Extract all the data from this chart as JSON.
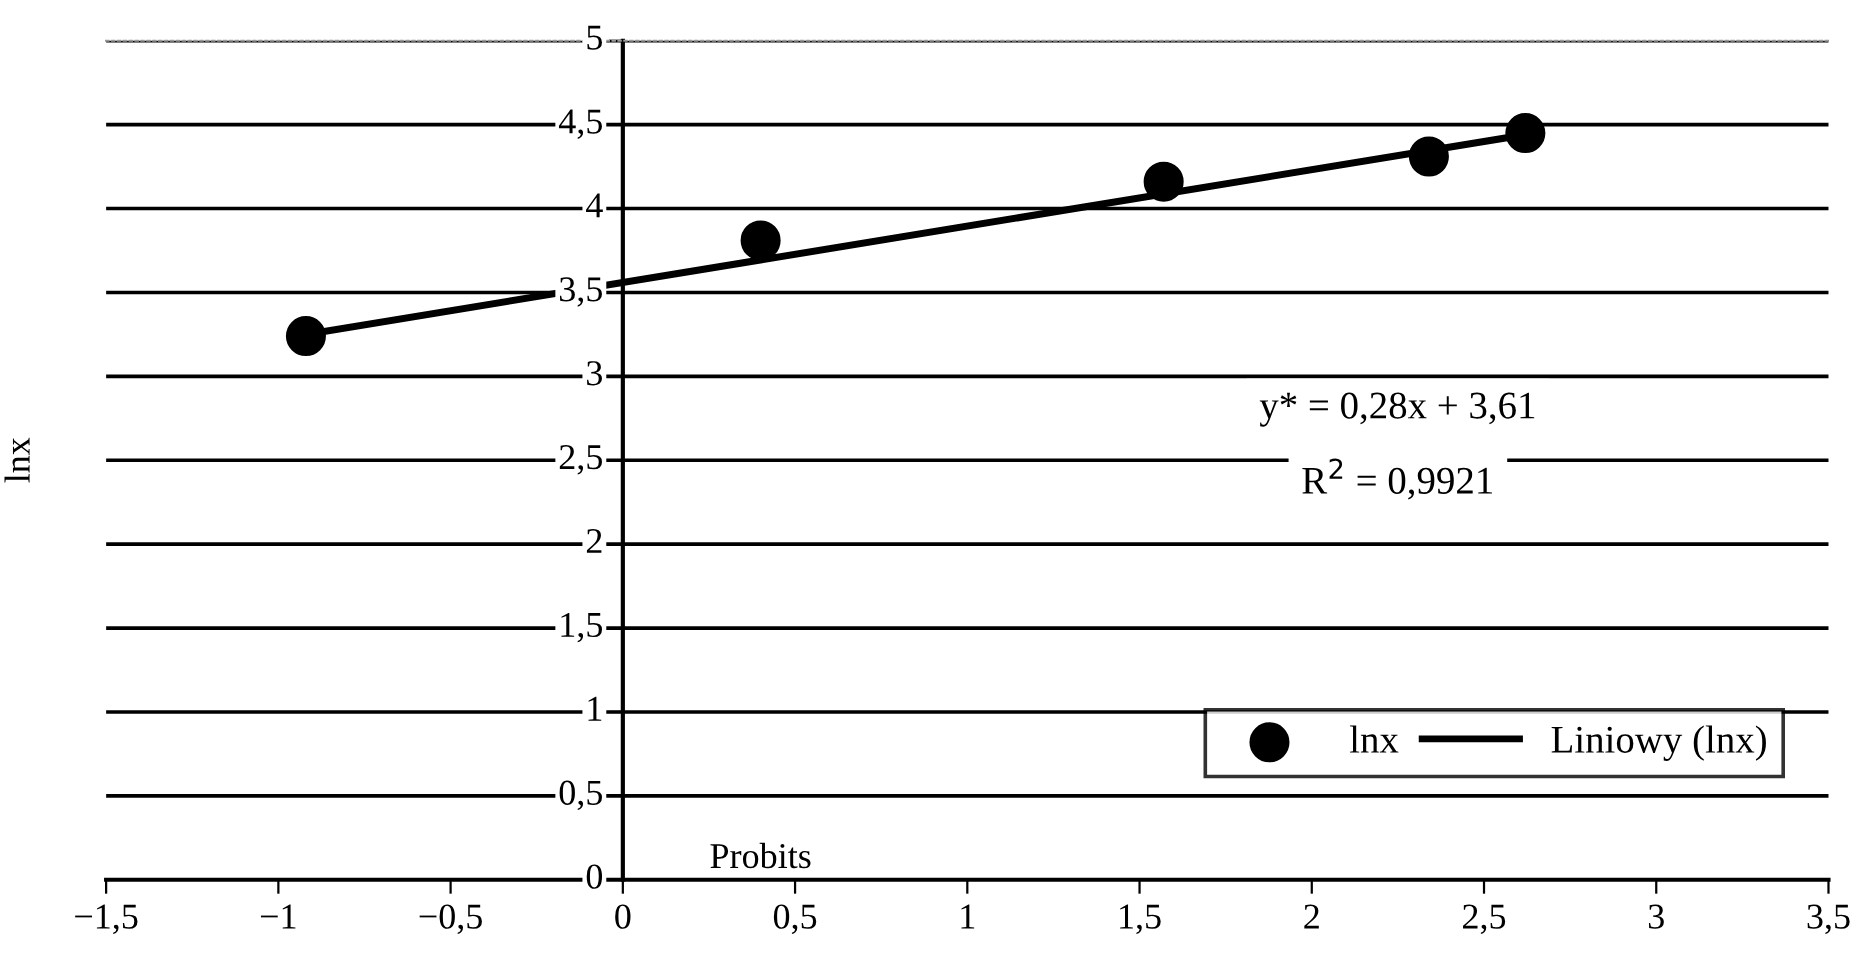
{
  "chart_data": {
    "type": "scatter",
    "xlabel": "Probits",
    "ylabel": "lnx",
    "series": [
      {
        "name": "lnx",
        "color": "#000000",
        "marker": "circle",
        "x": [
          -0.92,
          0.4,
          1.57,
          2.34,
          2.62
        ],
        "values": [
          3.24,
          3.81,
          4.16,
          4.31,
          4.45
        ]
      },
      {
        "name": "Liniowy (lnx)",
        "type": "line",
        "color": "#000000",
        "marker": "none",
        "line_style": "solid",
        "x": [
          -0.92,
          2.62
        ],
        "values": [
          3.25,
          4.44
        ]
      }
    ],
    "annotations": [
      "y* = 0,28x + 3,61",
      "R$^{2}$ = 0,9921"
    ],
    "xlim": [
      -1.5,
      3.5
    ],
    "ylim": [
      0,
      5
    ],
    "xticks": [
      {
        "value": -1.5,
        "label": "−1,5"
      },
      {
        "value": -1,
        "label": "−1"
      },
      {
        "value": -0.5,
        "label": "−0,5"
      },
      0,
      {
        "value": 0.5,
        "label": "0,5"
      },
      1,
      {
        "value": 1.5,
        "label": "1,5"
      },
      2,
      {
        "value": 2.5,
        "label": "2,5"
      },
      3,
      {
        "value": 3.5,
        "label": "3,5"
      }
    ],
    "yticks": [
      0,
      {
        "value": 0.5,
        "label": "0,5"
      },
      1,
      {
        "value": 1.5,
        "label": "1,5"
      },
      2,
      {
        "value": 2.5,
        "label": "2,5"
      },
      3,
      {
        "value": 3.5,
        "label": "3,5"
      },
      4,
      {
        "value": 4.5,
        "label": "4,5"
      },
      5
    ],
    "grid": "y",
    "legend": "bottom right"
  }
}
